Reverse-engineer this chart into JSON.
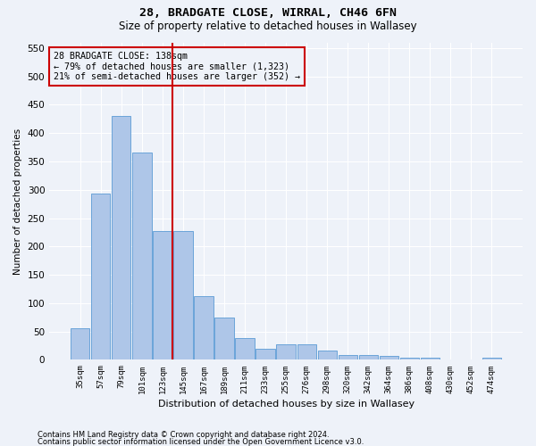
{
  "title1": "28, BRADGATE CLOSE, WIRRAL, CH46 6FN",
  "title2": "Size of property relative to detached houses in Wallasey",
  "xlabel": "Distribution of detached houses by size in Wallasey",
  "ylabel": "Number of detached properties",
  "footnote1": "Contains HM Land Registry data © Crown copyright and database right 2024.",
  "footnote2": "Contains public sector information licensed under the Open Government Licence v3.0.",
  "annotation_title": "28 BRADGATE CLOSE: 138sqm",
  "annotation_line1": "← 79% of detached houses are smaller (1,323)",
  "annotation_line2": "21% of semi-detached houses are larger (352) →",
  "categories": [
    "35sqm",
    "57sqm",
    "79sqm",
    "101sqm",
    "123sqm",
    "145sqm",
    "167sqm",
    "189sqm",
    "211sqm",
    "233sqm",
    "255sqm",
    "276sqm",
    "298sqm",
    "320sqm",
    "342sqm",
    "364sqm",
    "386sqm",
    "408sqm",
    "430sqm",
    "452sqm",
    "474sqm"
  ],
  "values": [
    55,
    293,
    430,
    365,
    227,
    228,
    113,
    75,
    38,
    20,
    28,
    28,
    17,
    9,
    8,
    7,
    4,
    4,
    1,
    0,
    4
  ],
  "bar_color": "#aec6e8",
  "bar_edge_color": "#5b9bd5",
  "vline_color": "#cc0000",
  "vline_x": 4.5,
  "background_color": "#eef2f9",
  "ylim": [
    0,
    560
  ],
  "yticks": [
    0,
    50,
    100,
    150,
    200,
    250,
    300,
    350,
    400,
    450,
    500,
    550
  ]
}
